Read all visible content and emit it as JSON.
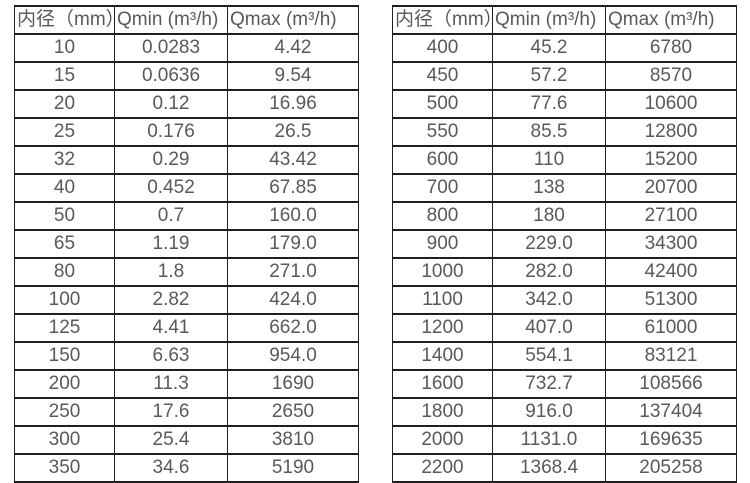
{
  "style": {
    "background": "#ffffff",
    "border_color": "#1f1f1f",
    "text_color": "#595959"
  },
  "chart_data": [
    {
      "type": "table",
      "name": "flow-range-table-small-diameters",
      "columns": [
        "内径（mm）",
        "Qmin (m³/h)",
        "Qmax (m³/h)"
      ],
      "rows": [
        [
          "10",
          "0.0283",
          "4.42"
        ],
        [
          "15",
          "0.0636",
          "9.54"
        ],
        [
          "20",
          "0.12",
          "16.96"
        ],
        [
          "25",
          "0.176",
          "26.5"
        ],
        [
          "32",
          "0.29",
          "43.42"
        ],
        [
          "40",
          "0.452",
          "67.85"
        ],
        [
          "50",
          "0.7",
          "160.0"
        ],
        [
          "65",
          "1.19",
          "179.0"
        ],
        [
          "80",
          "1.8",
          "271.0"
        ],
        [
          "100",
          "2.82",
          "424.0"
        ],
        [
          "125",
          "4.41",
          "662.0"
        ],
        [
          "150",
          "6.63",
          "954.0"
        ],
        [
          "200",
          "11.3",
          "1690"
        ],
        [
          "250",
          "17.6",
          "2650"
        ],
        [
          "300",
          "25.4",
          "3810"
        ],
        [
          "350",
          "34.6",
          "5190"
        ]
      ]
    },
    {
      "type": "table",
      "name": "flow-range-table-large-diameters",
      "columns": [
        "内径（mm）",
        "Qmin (m³/h)",
        "Qmax (m³/h)"
      ],
      "rows": [
        [
          "400",
          "45.2",
          "6780"
        ],
        [
          "450",
          "57.2",
          "8570"
        ],
        [
          "500",
          "77.6",
          "10600"
        ],
        [
          "550",
          "85.5",
          "12800"
        ],
        [
          "600",
          "110",
          "15200"
        ],
        [
          "700",
          "138",
          "20700"
        ],
        [
          "800",
          "180",
          "27100"
        ],
        [
          "900",
          "229.0",
          "34300"
        ],
        [
          "1000",
          "282.0",
          "42400"
        ],
        [
          "1100",
          "342.0",
          "51300"
        ],
        [
          "1200",
          "407.0",
          "61000"
        ],
        [
          "1400",
          "554.1",
          "83121"
        ],
        [
          "1600",
          "732.7",
          "108566"
        ],
        [
          "1800",
          "916.0",
          "137404"
        ],
        [
          "2000",
          "1131.0",
          "169635"
        ],
        [
          "2200",
          "1368.4",
          "205258"
        ]
      ]
    }
  ]
}
